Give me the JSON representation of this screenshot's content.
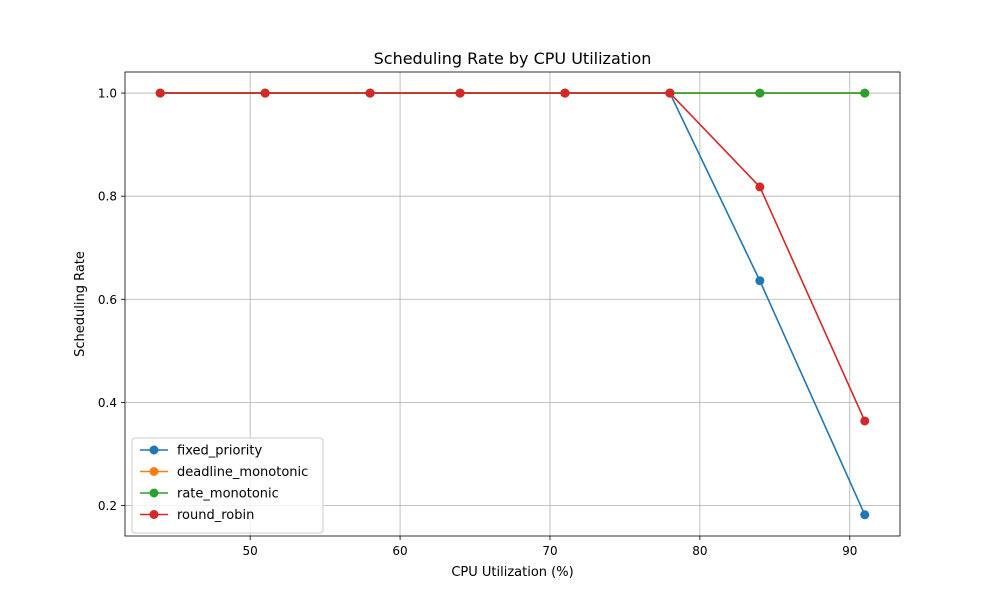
{
  "chart_data": {
    "type": "line",
    "title": "Scheduling Rate by CPU Utilization",
    "xlabel": "CPU Utilization (%)",
    "ylabel": "Scheduling Rate",
    "xlim": [
      41.65,
      93.35
    ],
    "ylim": [
      0.1408,
      1.0409
    ],
    "x_ticks": [
      50,
      60,
      70,
      80,
      90
    ],
    "y_ticks": [
      0.2,
      0.4,
      0.6,
      0.8,
      1.0
    ],
    "x_tick_labels": [
      "50",
      "60",
      "70",
      "80",
      "90"
    ],
    "y_tick_labels": [
      "0.2",
      "0.4",
      "0.6",
      "0.8",
      "1.0"
    ],
    "grid": true,
    "legend_position": "lower-left",
    "x": [
      44,
      51,
      58,
      64,
      71,
      78,
      84,
      91
    ],
    "series": [
      {
        "name": "fixed_priority",
        "color": "#1f77b4",
        "values": [
          1.0,
          1.0,
          1.0,
          1.0,
          1.0,
          1.0,
          0.636,
          0.182
        ]
      },
      {
        "name": "deadline_monotonic",
        "color": "#ff7f0e",
        "values": [
          1.0,
          1.0,
          1.0,
          1.0,
          1.0,
          1.0,
          1.0,
          1.0
        ]
      },
      {
        "name": "rate_monotonic",
        "color": "#2ca02c",
        "values": [
          1.0,
          1.0,
          1.0,
          1.0,
          1.0,
          1.0,
          1.0,
          1.0
        ]
      },
      {
        "name": "round_robin",
        "color": "#d62728",
        "values": [
          1.0,
          1.0,
          1.0,
          1.0,
          1.0,
          1.0,
          0.818,
          0.364
        ]
      }
    ]
  }
}
